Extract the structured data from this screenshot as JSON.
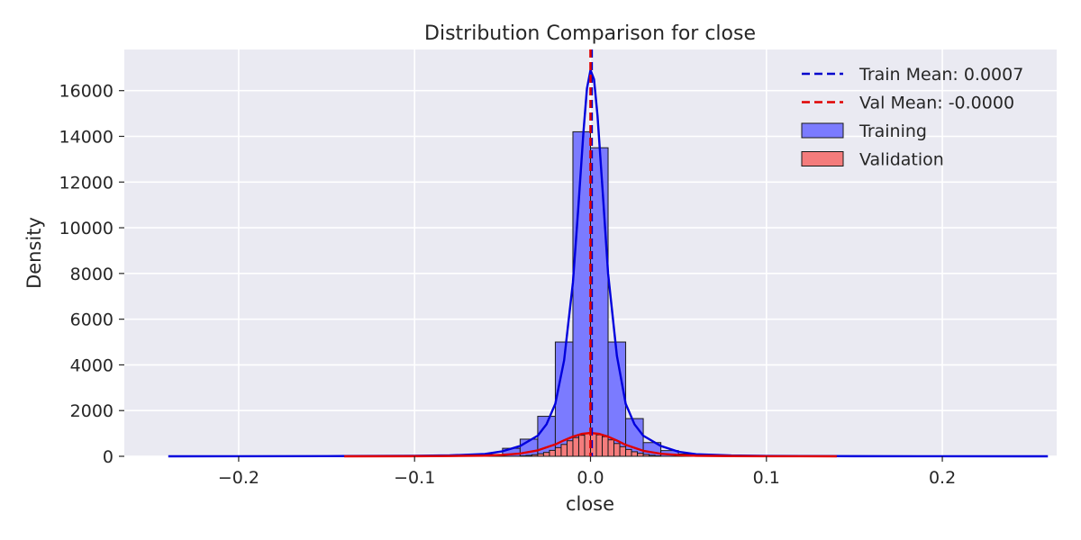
{
  "chart_data": {
    "type": "bar",
    "title": "Distribution Comparison for close",
    "xlabel": "close",
    "ylabel": "Density",
    "xlim": [
      -0.265,
      0.265
    ],
    "ylim": [
      0,
      17800
    ],
    "xticks": [
      -0.2,
      -0.1,
      0.0,
      0.1,
      0.2
    ],
    "xtick_labels": [
      "−0.2",
      "−0.1",
      "0.0",
      "0.1",
      "0.2"
    ],
    "yticks": [
      0,
      2000,
      4000,
      6000,
      8000,
      10000,
      12000,
      14000,
      16000
    ],
    "ytick_labels": [
      "0",
      "2000",
      "4000",
      "6000",
      "8000",
      "10000",
      "12000",
      "14000",
      "16000"
    ],
    "grid": true,
    "background": "#eaeaf2",
    "legend_position": "top-right",
    "series": [
      {
        "name": "Training",
        "color": "#7b7bff",
        "edge_color": "#1a1a1a",
        "bin_width": 0.01,
        "bins": [
          {
            "x0": -0.06,
            "value": 80
          },
          {
            "x0": -0.05,
            "value": 350
          },
          {
            "x0": -0.04,
            "value": 750
          },
          {
            "x0": -0.03,
            "value": 1750
          },
          {
            "x0": -0.02,
            "value": 5000
          },
          {
            "x0": -0.01,
            "value": 14200
          },
          {
            "x0": 0.0,
            "value": 13500
          },
          {
            "x0": 0.01,
            "value": 5000
          },
          {
            "x0": 0.02,
            "value": 1650
          },
          {
            "x0": 0.03,
            "value": 600
          },
          {
            "x0": 0.04,
            "value": 250
          },
          {
            "x0": 0.05,
            "value": 100
          }
        ]
      },
      {
        "name": "Validation",
        "color": "#f47c7c",
        "edge_color": "#1a1a1a",
        "bin_width": 0.00333,
        "bins": [
          {
            "x0": -0.04,
            "value": 20
          },
          {
            "x0": -0.03667,
            "value": 40
          },
          {
            "x0": -0.03333,
            "value": 70
          },
          {
            "x0": -0.03,
            "value": 110
          },
          {
            "x0": -0.02667,
            "value": 170
          },
          {
            "x0": -0.02333,
            "value": 260
          },
          {
            "x0": -0.02,
            "value": 380
          },
          {
            "x0": -0.01667,
            "value": 520
          },
          {
            "x0": -0.01333,
            "value": 680
          },
          {
            "x0": -0.01,
            "value": 820
          },
          {
            "x0": -0.00667,
            "value": 920
          },
          {
            "x0": -0.00333,
            "value": 1020
          },
          {
            "x0": 0.0,
            "value": 1000
          },
          {
            "x0": 0.00333,
            "value": 940
          },
          {
            "x0": 0.00667,
            "value": 860
          },
          {
            "x0": 0.01,
            "value": 720
          },
          {
            "x0": 0.01333,
            "value": 560
          },
          {
            "x0": 0.01667,
            "value": 420
          },
          {
            "x0": 0.02,
            "value": 300
          },
          {
            "x0": 0.02333,
            "value": 200
          },
          {
            "x0": 0.02667,
            "value": 130
          },
          {
            "x0": 0.03,
            "value": 80
          },
          {
            "x0": 0.03333,
            "value": 45
          },
          {
            "x0": 0.03667,
            "value": 20
          }
        ]
      }
    ],
    "kde": [
      {
        "series": "Training",
        "color": "#0000dd",
        "points": [
          [
            -0.24,
            0
          ],
          [
            -0.2,
            3
          ],
          [
            -0.15,
            8
          ],
          [
            -0.1,
            20
          ],
          [
            -0.08,
            40
          ],
          [
            -0.06,
            100
          ],
          [
            -0.05,
            220
          ],
          [
            -0.04,
            450
          ],
          [
            -0.03,
            900
          ],
          [
            -0.025,
            1400
          ],
          [
            -0.02,
            2300
          ],
          [
            -0.015,
            4200
          ],
          [
            -0.01,
            7600
          ],
          [
            -0.007,
            10800
          ],
          [
            -0.004,
            14200
          ],
          [
            -0.002,
            16100
          ],
          [
            0.0,
            16900
          ],
          [
            0.002,
            16500
          ],
          [
            0.004,
            14900
          ],
          [
            0.007,
            11500
          ],
          [
            0.01,
            8000
          ],
          [
            0.015,
            4400
          ],
          [
            0.02,
            2300
          ],
          [
            0.025,
            1400
          ],
          [
            0.03,
            900
          ],
          [
            0.04,
            450
          ],
          [
            0.05,
            200
          ],
          [
            0.06,
            90
          ],
          [
            0.08,
            35
          ],
          [
            0.1,
            15
          ],
          [
            0.15,
            5
          ],
          [
            0.2,
            2
          ],
          [
            0.26,
            0
          ]
        ]
      },
      {
        "series": "Validation",
        "color": "#e00000",
        "points": [
          [
            -0.14,
            0
          ],
          [
            -0.1,
            5
          ],
          [
            -0.08,
            12
          ],
          [
            -0.06,
            30
          ],
          [
            -0.05,
            60
          ],
          [
            -0.04,
            120
          ],
          [
            -0.03,
            260
          ],
          [
            -0.02,
            520
          ],
          [
            -0.015,
            700
          ],
          [
            -0.01,
            860
          ],
          [
            -0.005,
            980
          ],
          [
            0.0,
            1020
          ],
          [
            0.005,
            980
          ],
          [
            0.01,
            860
          ],
          [
            0.015,
            690
          ],
          [
            0.02,
            500
          ],
          [
            0.03,
            240
          ],
          [
            0.04,
            110
          ],
          [
            0.05,
            55
          ],
          [
            0.06,
            25
          ],
          [
            0.08,
            10
          ],
          [
            0.1,
            4
          ],
          [
            0.14,
            0
          ]
        ]
      }
    ],
    "vlines": [
      {
        "name": "Train Mean: 0.0007",
        "x": 0.0007,
        "color": "#0000cc",
        "style": "dashed"
      },
      {
        "name": "Val Mean: -0.0000",
        "x": 0.0,
        "color": "#e00000",
        "style": "dashed"
      }
    ],
    "legend": [
      {
        "label": "Train Mean: 0.0007",
        "kind": "dash",
        "color": "#0000cc"
      },
      {
        "label": "Val Mean: -0.0000",
        "kind": "dash",
        "color": "#e00000"
      },
      {
        "label": "Training",
        "kind": "patch",
        "color": "#7b7bff"
      },
      {
        "label": "Validation",
        "kind": "patch",
        "color": "#f47c7c"
      }
    ]
  }
}
